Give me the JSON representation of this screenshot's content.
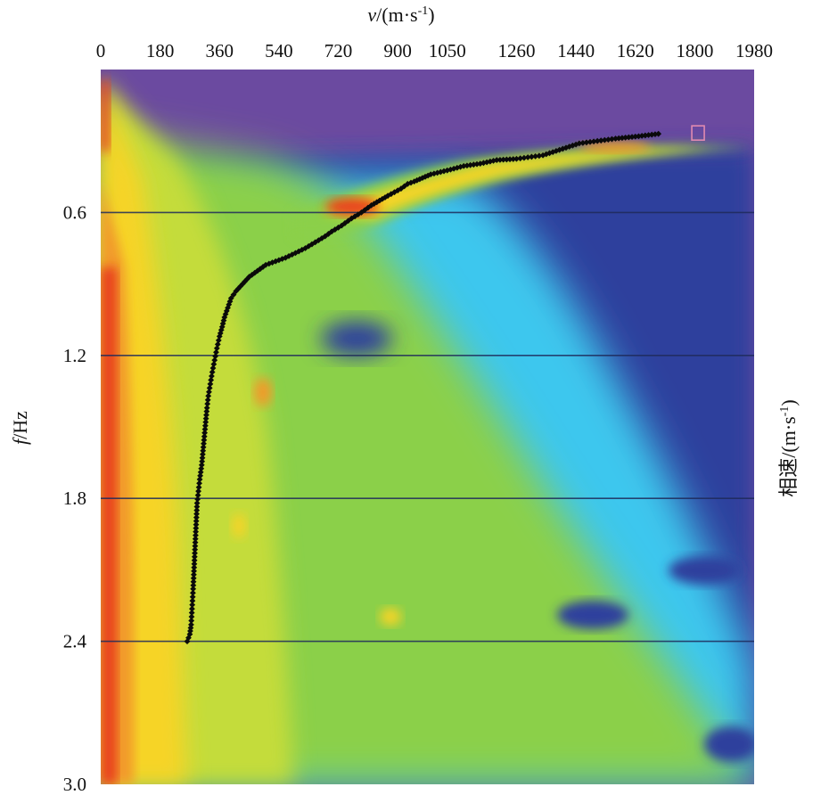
{
  "chart_data": {
    "type": "heatmap",
    "title": "",
    "x_axis": {
      "label_italic": "v",
      "label_rest": "/(m·s",
      "label_sup": "-1",
      "label_close": ")",
      "position": "top",
      "ticks": [
        0,
        180,
        360,
        540,
        720,
        900,
        1050,
        1260,
        1440,
        1620,
        1800,
        1980
      ],
      "range": [
        0,
        1980
      ]
    },
    "y_axis": {
      "label_italic": "f",
      "label_rest": "/Hz",
      "ticks": [
        "0.6",
        "1.2",
        "1.8",
        "2.4",
        "3.0"
      ],
      "tick_values": [
        0.6,
        1.2,
        1.8,
        2.4,
        3.0
      ],
      "range": [
        0,
        3.0
      ],
      "inverted": true
    },
    "colorbar_label": {
      "text": "相速/(m·s",
      "sup": "-1",
      "close": ")"
    },
    "grid_lines_y": [
      0.6,
      1.2,
      1.8,
      2.4
    ],
    "colormap": [
      "#e8401f",
      "#f6d428",
      "#8bd04a",
      "#3cc7ee",
      "#2e3f9d",
      "#6b4aa0"
    ],
    "series": [
      {
        "name": "",
        "marker": "black-diamond",
        "points": [
          [
            1690,
            0.27
          ],
          [
            1630,
            0.28
          ],
          [
            1560,
            0.29
          ],
          [
            1450,
            0.31
          ],
          [
            1340,
            0.36
          ],
          [
            1260,
            0.375
          ],
          [
            1200,
            0.38
          ],
          [
            1150,
            0.395
          ],
          [
            1100,
            0.405
          ],
          [
            1060,
            0.42
          ],
          [
            1030,
            0.43
          ],
          [
            1000,
            0.44
          ],
          [
            975,
            0.455
          ],
          [
            950,
            0.47
          ],
          [
            930,
            0.48
          ],
          [
            910,
            0.5
          ],
          [
            890,
            0.515
          ],
          [
            870,
            0.53
          ],
          [
            845,
            0.55
          ],
          [
            820,
            0.57
          ],
          [
            790,
            0.6
          ],
          [
            760,
            0.625
          ],
          [
            730,
            0.655
          ],
          [
            700,
            0.68
          ],
          [
            680,
            0.7
          ],
          [
            650,
            0.725
          ],
          [
            620,
            0.75
          ],
          [
            590,
            0.77
          ],
          [
            560,
            0.79
          ],
          [
            530,
            0.805
          ],
          [
            500,
            0.82
          ],
          [
            475,
            0.845
          ],
          [
            450,
            0.87
          ],
          [
            430,
            0.9
          ],
          [
            410,
            0.93
          ],
          [
            395,
            0.96
          ],
          [
            385,
            1.0
          ],
          [
            375,
            1.04
          ],
          [
            368,
            1.08
          ],
          [
            360,
            1.12
          ],
          [
            352,
            1.17
          ],
          [
            345,
            1.22
          ],
          [
            338,
            1.27
          ],
          [
            332,
            1.32
          ],
          [
            326,
            1.37
          ],
          [
            322,
            1.42
          ],
          [
            318,
            1.48
          ],
          [
            314,
            1.54
          ],
          [
            310,
            1.6
          ],
          [
            306,
            1.66
          ],
          [
            300,
            1.72
          ],
          [
            296,
            1.77
          ],
          [
            292,
            1.82
          ],
          [
            290,
            1.88
          ],
          [
            288,
            1.94
          ],
          [
            286,
            2.0
          ],
          [
            284,
            2.06
          ],
          [
            282,
            2.12
          ],
          [
            280,
            2.18
          ],
          [
            278,
            2.23
          ],
          [
            276,
            2.28
          ],
          [
            274,
            2.33
          ],
          [
            270,
            2.37
          ],
          [
            262,
            2.4
          ]
        ],
        "end_marker": {
          "x": 1810,
          "y": 0.27,
          "style": "open-square",
          "color": "#e08ab0"
        }
      }
    ]
  }
}
